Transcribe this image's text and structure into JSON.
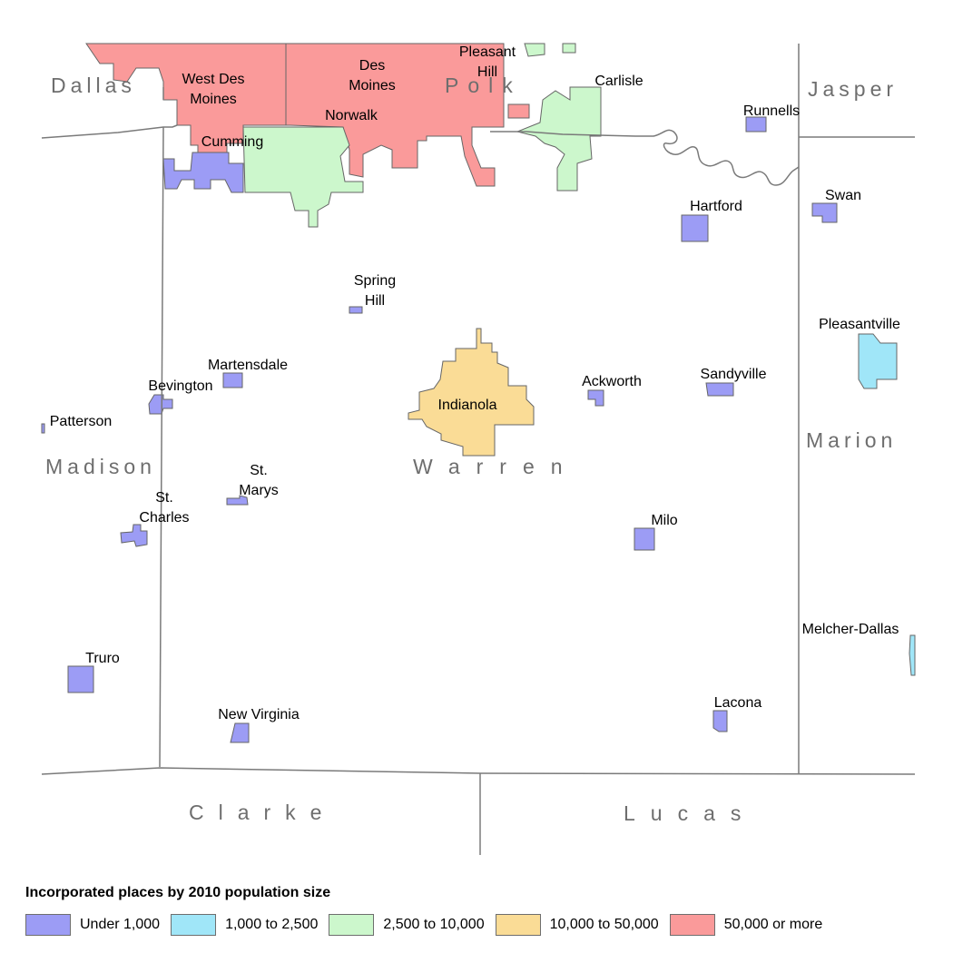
{
  "colors": {
    "under_1000": "#9c9cf5",
    "1000_2500": "#a0e6f8",
    "2500_10000": "#ccf7cc",
    "10000_50000": "#fadc96",
    "50000_plus": "#fa9a9a",
    "boundary": "#7a7a7a",
    "county_label": "#6e6e6e"
  },
  "counties": {
    "dallas": "Dallas",
    "polk": "Polk",
    "jasper": "Jasper",
    "madison": "Madison",
    "warren": "Warren",
    "marion": "Marion",
    "clarke": "Clarke",
    "lucas": "Lucas"
  },
  "places": {
    "west_des_moines": [
      "West Des",
      "Moines"
    ],
    "des_moines": [
      "Des",
      "Moines"
    ],
    "pleasant_hill": [
      "Pleasant",
      "Hill"
    ],
    "carlisle": "Carlisle",
    "norwalk": "Norwalk",
    "cumming": "Cumming",
    "runnells": "Runnells",
    "hartford": "Hartford",
    "swan": "Swan",
    "spring_hill": [
      "Spring",
      "Hill"
    ],
    "pleasantville": "Pleasantville",
    "martensdale": "Martensdale",
    "bevington": "Bevington",
    "patterson": "Patterson",
    "indianola": "Indianola",
    "ackworth": "Ackworth",
    "sandyville": "Sandyville",
    "st_marys": [
      "St.",
      "Marys"
    ],
    "st_charles": [
      "St.",
      "Charles"
    ],
    "milo": "Milo",
    "melcher_dallas": "Melcher-Dallas",
    "truro": "Truro",
    "new_virginia": "New Virginia",
    "lacona": "Lacona"
  },
  "legend": {
    "title": "Incorporated places by 2010 population size",
    "items": [
      {
        "label": "Under 1,000",
        "color": "#9c9cf5"
      },
      {
        "label": "1,000 to 2,500",
        "color": "#a0e6f8"
      },
      {
        "label": "2,500 to 10,000",
        "color": "#ccf7cc"
      },
      {
        "label": "10,000 to 50,000",
        "color": "#fadc96"
      },
      {
        "label": "50,000 or more",
        "color": "#fa9a9a"
      }
    ]
  }
}
